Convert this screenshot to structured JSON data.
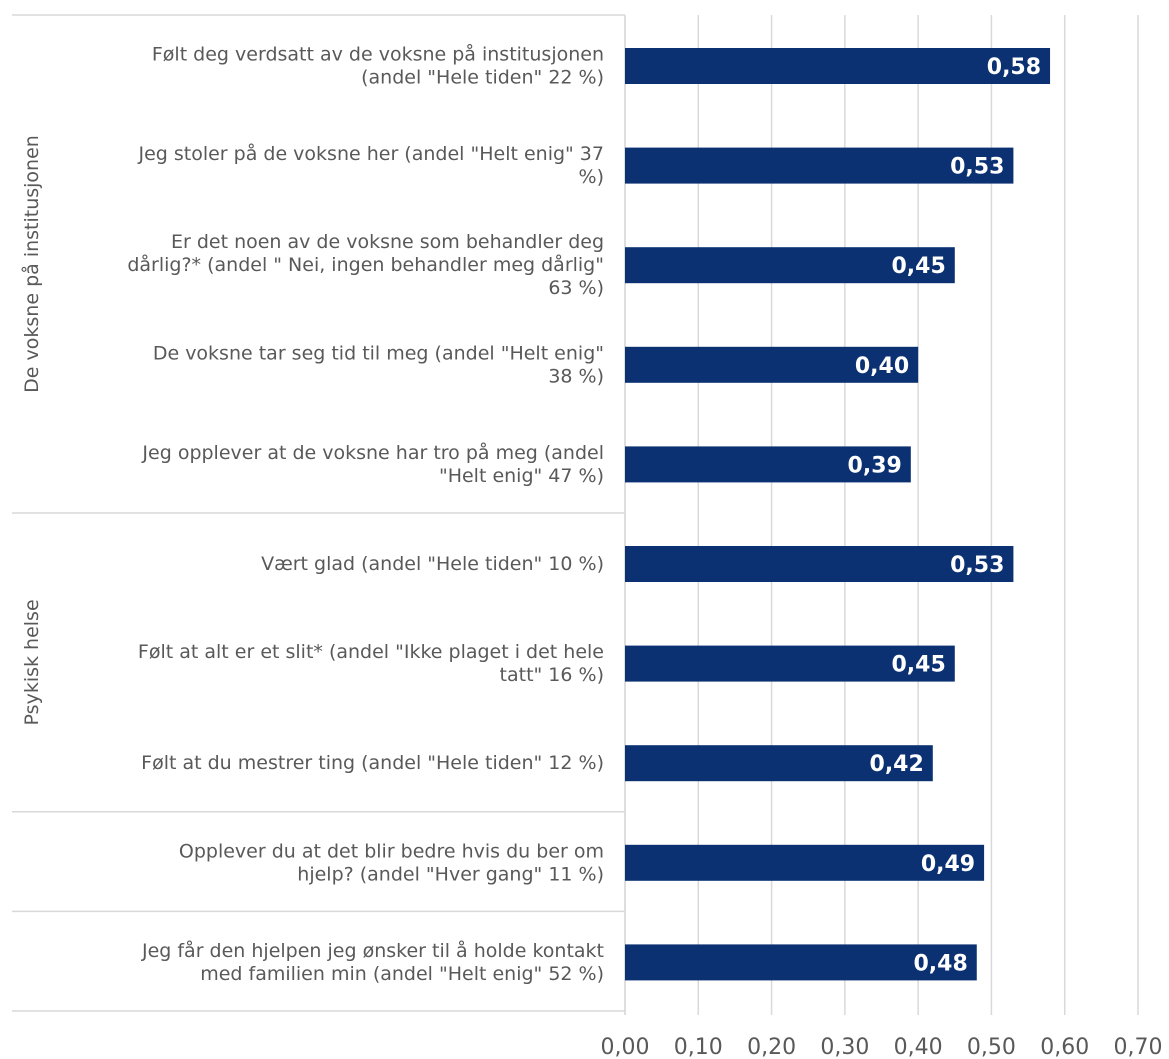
{
  "chart_data": {
    "type": "bar",
    "orientation": "horizontal",
    "title": "",
    "xlabel": "",
    "ylabel": "",
    "xlim": [
      0,
      0.7
    ],
    "ticks": [
      "0,00",
      "0,10",
      "0,20",
      "0,30",
      "0,40",
      "0,50",
      "0,60",
      "0,70"
    ],
    "grid": true,
    "bar_color": "#0b3172",
    "groups": [
      {
        "name": "De voksne på institusjonen",
        "count": 5
      },
      {
        "name": "Psykisk helse",
        "count": 3
      },
      {
        "name": "",
        "count": 1
      },
      {
        "name": "",
        "count": 1
      }
    ],
    "categories": [
      [
        "Følt deg verdsatt av de voksne på institusjonen",
        "(andel \"Hele tiden\" 22 %)"
      ],
      [
        "Jeg stoler på de voksne her (andel \"Helt enig\" 37",
        "%)"
      ],
      [
        "Er det noen av de voksne som behandler deg",
        "dårlig?* (andel \" Nei, ingen behandler meg dårlig\"",
        "63 %)"
      ],
      [
        "De voksne tar seg tid til meg (andel \"Helt enig\"",
        "38 %)"
      ],
      [
        "Jeg opplever at de voksne har tro på meg (andel",
        "\"Helt enig\" 47 %)"
      ],
      [
        "Vært glad (andel \"Hele tiden\" 10 %)"
      ],
      [
        "Følt at alt er et slit* (andel \"Ikke plaget i det hele",
        "tatt\" 16 %)"
      ],
      [
        "Følt at du mestrer ting (andel \"Hele tiden\" 12 %)"
      ],
      [
        "Opplever du at det blir bedre hvis du ber om",
        "hjelp? (andel \"Hver gang\" 11 %)"
      ],
      [
        "Jeg får den hjelpen jeg ønsker til å holde kontakt",
        "med familien min (andel \"Helt enig\" 52 %)"
      ]
    ],
    "values": [
      0.58,
      0.53,
      0.45,
      0.4,
      0.39,
      0.53,
      0.45,
      0.42,
      0.49,
      0.48
    ],
    "data_labels": [
      "0,58",
      "0,53",
      "0,45",
      "0,40",
      "0,39",
      "0,53",
      "0,45",
      "0,42",
      "0,49",
      "0,48"
    ]
  }
}
